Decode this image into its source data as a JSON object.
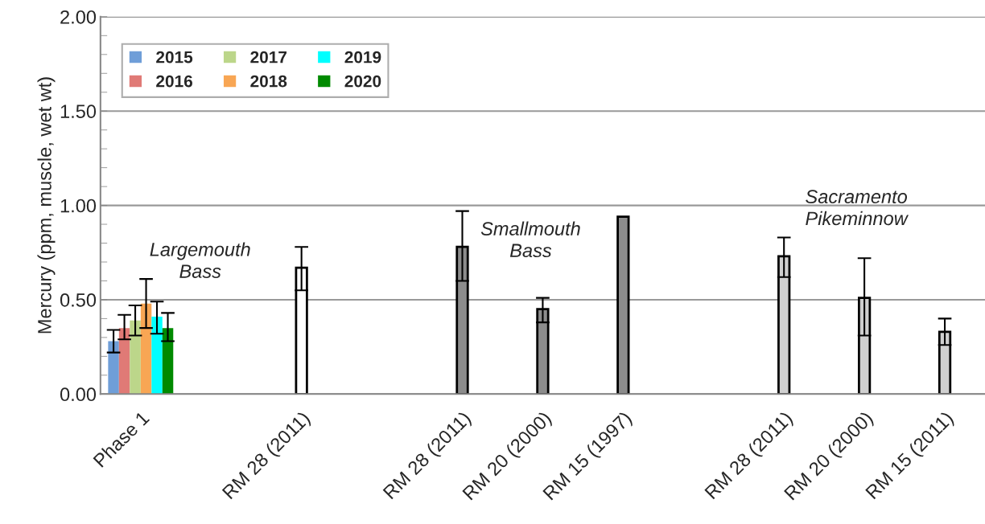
{
  "chart_data": {
    "type": "bar",
    "categories": [
      "Phase 1",
      null,
      "RM 28 (2011)",
      null,
      "RM 28 (2011)",
      "RM 20 (2000)",
      "RM 15 (1997)",
      null,
      "RM 28 (2011)",
      "RM 20 (2000)",
      "RM 15 (2011)"
    ],
    "series": [
      {
        "name": "2015",
        "color": "#6f9ed8",
        "values": [
          0.28,
          null,
          null,
          null,
          null,
          null,
          null,
          null,
          null,
          null,
          null
        ],
        "errors": [
          [
            0.22,
            0.34
          ],
          null,
          null,
          null,
          null,
          null,
          null,
          null,
          null,
          null,
          null
        ]
      },
      {
        "name": "2016",
        "color": "#e07a76",
        "values": [
          0.35,
          null,
          null,
          null,
          null,
          null,
          null,
          null,
          null,
          null,
          null
        ],
        "errors": [
          [
            0.29,
            0.42
          ],
          null,
          null,
          null,
          null,
          null,
          null,
          null,
          null,
          null,
          null
        ]
      },
      {
        "name": "2017",
        "color": "#bcd68a",
        "values": [
          0.39,
          null,
          null,
          null,
          null,
          null,
          null,
          null,
          null,
          null,
          null
        ],
        "errors": [
          [
            0.31,
            0.47
          ],
          null,
          null,
          null,
          null,
          null,
          null,
          null,
          null,
          null,
          null
        ]
      },
      {
        "name": "2018",
        "color": "#f8a654",
        "values": [
          0.48,
          null,
          null,
          null,
          null,
          null,
          null,
          null,
          null,
          null,
          null
        ],
        "errors": [
          [
            0.35,
            0.61
          ],
          null,
          null,
          null,
          null,
          null,
          null,
          null,
          null,
          null,
          null
        ]
      },
      {
        "name": "2019",
        "color": "#00ffff",
        "values": [
          0.41,
          null,
          null,
          null,
          null,
          null,
          null,
          null,
          null,
          null,
          null
        ],
        "errors": [
          [
            0.32,
            0.49
          ],
          null,
          null,
          null,
          null,
          null,
          null,
          null,
          null,
          null,
          null
        ]
      },
      {
        "name": "2020",
        "color": "#008a00",
        "values": [
          0.35,
          null,
          null,
          null,
          null,
          null,
          null,
          null,
          null,
          null,
          null
        ],
        "errors": [
          [
            0.28,
            0.43
          ],
          null,
          null,
          null,
          null,
          null,
          null,
          null,
          null,
          null,
          null
        ]
      },
      {
        "colors": [
          null,
          null,
          "#ffffff",
          null,
          "#8c8c8c",
          "#8c8c8c",
          "#8c8c8c",
          null,
          "#d0d0d0",
          "#d0d0d0",
          "#d0d0d0"
        ],
        "values": [
          null,
          null,
          0.67,
          null,
          0.78,
          0.45,
          0.94,
          null,
          0.73,
          0.51,
          0.33
        ],
        "errors": [
          null,
          null,
          [
            0.55,
            0.78
          ],
          null,
          [
            0.6,
            0.97
          ],
          [
            0.38,
            0.51
          ],
          null,
          null,
          [
            0.62,
            0.83
          ],
          [
            0.31,
            0.72
          ],
          [
            0.26,
            0.4
          ]
        ]
      }
    ],
    "ylabel": "Mercury (ppm, muscle, wet wt)",
    "ylim": [
      0,
      2
    ],
    "yticks": [
      {
        "value": 0,
        "label": "0.00"
      },
      {
        "value": 0.5,
        "label": "0.50"
      },
      {
        "value": 1,
        "label": "1.00"
      },
      {
        "value": 1.5,
        "label": "1.50"
      },
      {
        "value": 2,
        "label": "2.00"
      }
    ],
    "annotations": [
      "Largemouth Bass",
      "Smallmouth Bass",
      "Sacramento Pikeminnow"
    ],
    "grid": "y",
    "legend": "top left"
  }
}
